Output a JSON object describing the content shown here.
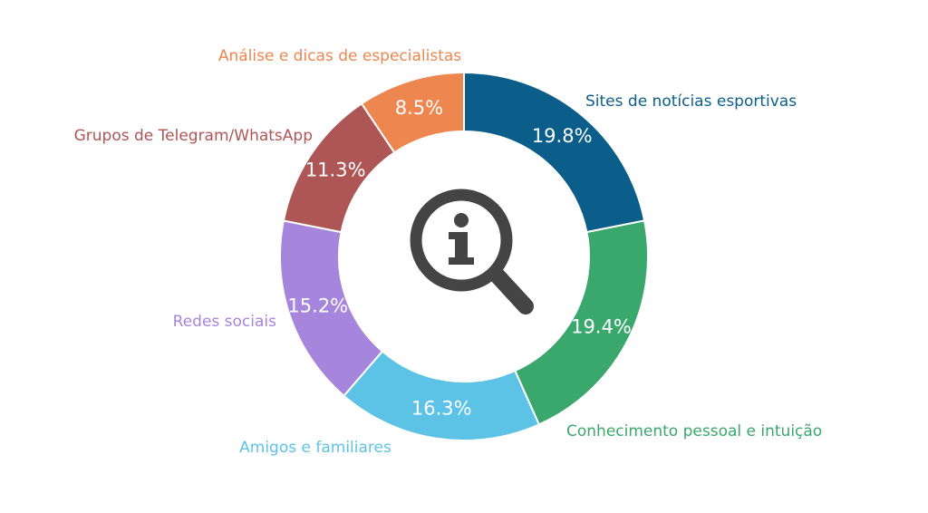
{
  "chart_data": {
    "type": "donut",
    "categories": [
      "Sites de notícias esportivas",
      "Conhecimento pessoal e intuição",
      "Amigos e familiares",
      "Redes sociais",
      "Grupos de Telegram/WhatsApp",
      "Análise e dicas de especialistas"
    ],
    "values": [
      19.8,
      19.4,
      16.3,
      15.2,
      11.3,
      8.5
    ],
    "value_labels": [
      "19.8%",
      "19.4%",
      "16.3%",
      "15.2%",
      "11.3%",
      "8.5%"
    ],
    "colors": [
      "#0b5e8a",
      "#3aa76d",
      "#5cc3e6",
      "#a685dd",
      "#ae5656",
      "#ee8650"
    ]
  }
}
